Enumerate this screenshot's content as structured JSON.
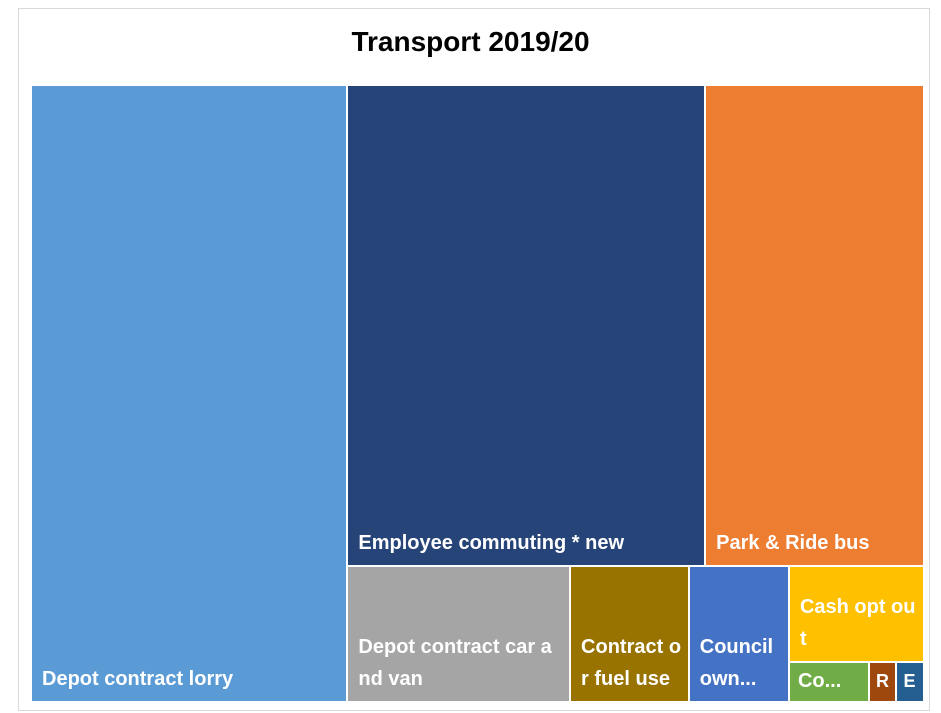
{
  "chart_data": {
    "type": "treemap",
    "title": "Transport 2019/20",
    "categories": [
      "Depot contract lorry",
      "Employee commuting * new",
      "Park & Ride bus",
      "Depot contract car and van",
      "Contract or fuel use",
      "Council own...",
      "Cash opt out",
      "Co...",
      "R",
      "E"
    ],
    "values": [
      193,
      170,
      104,
      30,
      16,
      13.5,
      12.8,
      3.2,
      1.1,
      1.1
    ],
    "colors": [
      "#5b9bd5",
      "#264478",
      "#ed7d31",
      "#a5a5a5",
      "#997300",
      "#4472c4",
      "#ffc000",
      "#70ad47",
      "#9e480e",
      "#255e91"
    ]
  }
}
